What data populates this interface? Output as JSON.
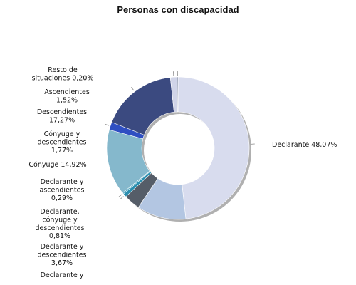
{
  "chart_data": {
    "type": "pie",
    "title": "Personas con discapacidad",
    "series": [
      {
        "name": "Declarante",
        "value": 48.07,
        "label_lines": [
          "Declarante 48,07%"
        ],
        "color": "#d8dcee"
      },
      {
        "name": "",
        "value": 11.13,
        "label_lines": [],
        "color": "#b3c6e2"
      },
      {
        "name": "",
        "value": 3.67,
        "label_lines": [],
        "color": "#555d68"
      },
      {
        "name": "Declarante, cónyuge y descendientes",
        "value": 0.81,
        "label_lines": [
          "Declarante,",
          "cónyuge y",
          "descendientes",
          "0,81%"
        ],
        "color": "#2b8fb0"
      },
      {
        "name": "Declarante y ascendientes",
        "value": 0.29,
        "label_lines": [
          "Declarante y",
          "ascendientes",
          "0,29%"
        ],
        "color": "#4ea9c4"
      },
      {
        "name": "Cónyuge",
        "value": 14.92,
        "label_lines": [
          "Cónyuge 14,92%"
        ],
        "color": "#85b8cc"
      },
      {
        "name": "Cónyuge y descendientes",
        "value": 1.77,
        "label_lines": [
          "Cónyuge y",
          "descendientes",
          "1,77%"
        ],
        "color": "#2f4fc2"
      },
      {
        "name": "Descendientes",
        "value": 17.27,
        "label_lines": [
          "Descendientes",
          "17,27%"
        ],
        "color": "#3b4a80"
      },
      {
        "name": "Ascendientes",
        "value": 1.52,
        "label_lines": [
          "Ascendientes",
          "1,52%"
        ],
        "color": "#d0d4e8"
      },
      {
        "name": "Resto de situaciones",
        "value": 0.2,
        "label_lines": [
          "Resto de",
          "situaciones 0,20%"
        ],
        "color": "#6f7c99"
      }
    ],
    "extra_labels": [
      {
        "name": "Declarante y descendientes",
        "label_lines": [
          "Declarante y",
          "descendientes",
          "3,67%"
        ]
      },
      {
        "name": "Declarante y",
        "label_lines": [
          "Declarante y"
        ]
      }
    ],
    "legend": "none"
  }
}
